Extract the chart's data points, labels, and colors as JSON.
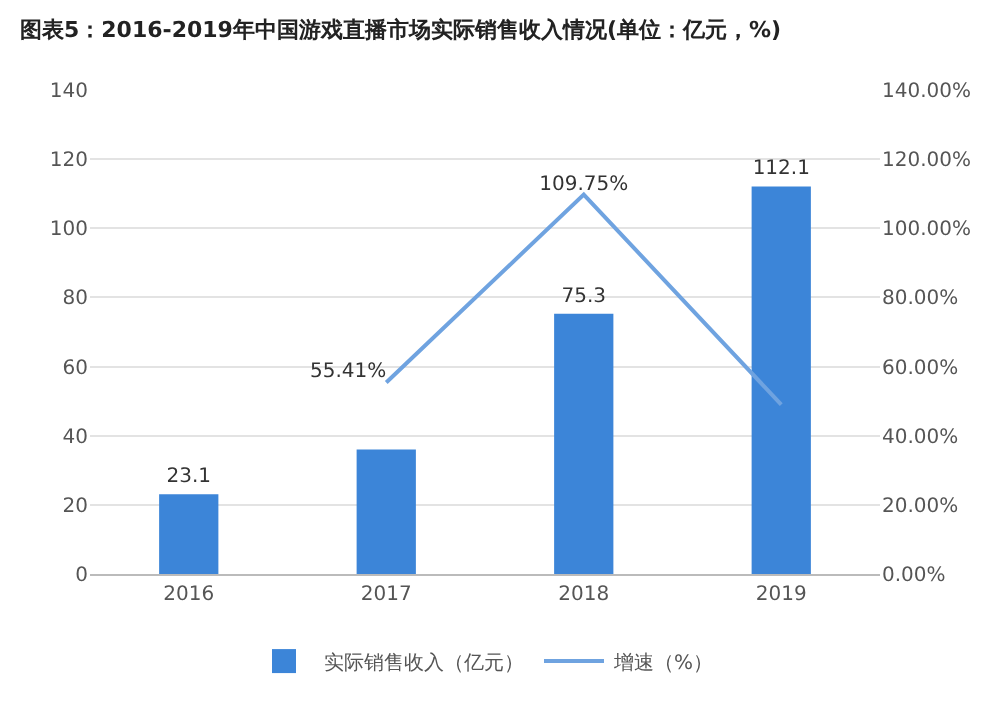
{
  "chart_data": {
    "type": "bar",
    "title": "图表5：2016-2019年中国游戏直播市场实际销售收入情况(单位：亿元，%)",
    "categories": [
      "2016",
      "2017",
      "2018",
      "2019"
    ],
    "series": [
      {
        "name": "实际销售收入（亿元）",
        "color": "#3c85d8",
        "values": [
          23.1,
          36,
          75.3,
          112.1
        ],
        "value_labels": [
          "23.1",
          null,
          "75.3",
          "112.1"
        ]
      },
      {
        "name": "增速（%）",
        "type": "line",
        "axis": "y2",
        "color": "#6fa3e0",
        "values": [
          null,
          55.41,
          109.75,
          49
        ],
        "value_labels": [
          null,
          "55.41%",
          "109.75%",
          null
        ]
      }
    ],
    "ylim": [
      0,
      140
    ],
    "yticks": [
      0,
      20,
      40,
      60,
      80,
      100,
      120,
      140
    ],
    "y2lim": [
      0,
      140
    ],
    "y2ticks": [
      {
        "value": 0,
        "label": "0.00%"
      },
      {
        "value": 20,
        "label": "20.00%"
      },
      {
        "value": 40,
        "label": "40.00%"
      },
      {
        "value": 60,
        "label": "60.00%"
      },
      {
        "value": 80,
        "label": "80.00%"
      },
      {
        "value": 100,
        "label": "100.00%"
      },
      {
        "value": 120,
        "label": "120.00%"
      },
      {
        "value": 140,
        "label": "140.00%"
      }
    ],
    "grid": "y",
    "legend": "bottom",
    "marker": "none",
    "line_style": "solid"
  }
}
